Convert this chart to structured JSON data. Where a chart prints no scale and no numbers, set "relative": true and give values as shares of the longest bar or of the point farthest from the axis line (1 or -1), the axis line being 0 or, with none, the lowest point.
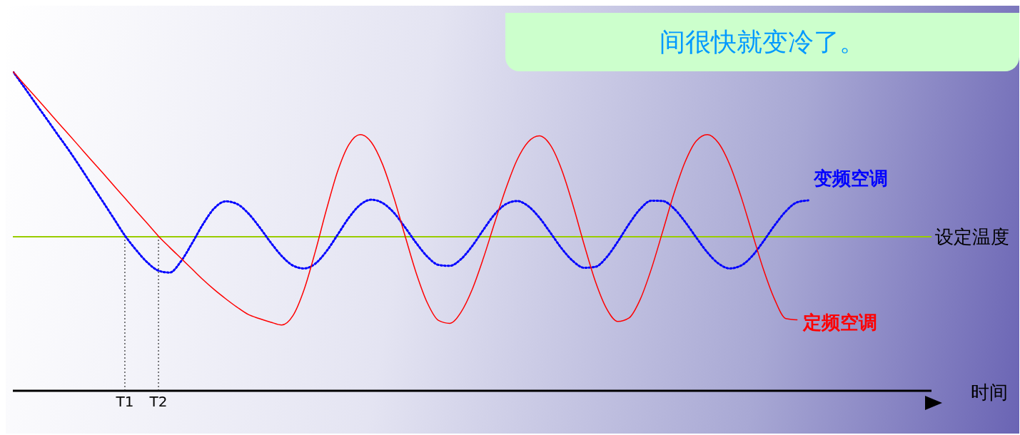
{
  "chart_data": {
    "type": "line",
    "relative": true,
    "xlabel": "时间",
    "categories": [
      null,
      null,
      null,
      null,
      null,
      null,
      null,
      null,
      null,
      null,
      "T1",
      null,
      null,
      "T2",
      null,
      null,
      null,
      null,
      null,
      null,
      null,
      null,
      null,
      null,
      null,
      null,
      null,
      null,
      null,
      null,
      null,
      null,
      null,
      null,
      null,
      null,
      null,
      null,
      null,
      null,
      null,
      null,
      null,
      null,
      null,
      null,
      null,
      null,
      null,
      null,
      null,
      null,
      null,
      null,
      null,
      null,
      null,
      null,
      null,
      null,
      null,
      null,
      null,
      null,
      null,
      null,
      null,
      null,
      null,
      null,
      null,
      null,
      null,
      null,
      null,
      null,
      null,
      null,
      null,
      null,
      null,
      null,
      null
    ],
    "series": [
      {
        "name": "变频空调",
        "color": "#0000ff",
        "line_style": "dotted",
        "values": [
          1.0,
          0.951,
          0.901,
          0.852,
          0.802,
          0.753,
          0.701,
          0.647,
          0.594,
          0.54,
          0.486,
          0.441,
          0.402,
          0.376,
          0.37,
          0.405,
          0.462,
          0.523,
          0.572,
          0.593,
          0.585,
          0.556,
          0.513,
          0.465,
          0.422,
          0.392,
          0.383,
          0.398,
          0.437,
          0.489,
          0.542,
          0.582,
          0.598,
          0.588,
          0.558,
          0.512,
          0.463,
          0.42,
          0.394,
          0.391,
          0.412,
          0.453,
          0.504,
          0.552,
          0.584,
          0.594,
          0.578,
          0.542,
          0.494,
          0.445,
          0.406,
          0.385,
          0.388,
          0.418,
          0.467,
          0.522,
          0.569,
          0.595,
          0.594,
          0.571,
          0.529,
          0.48,
          0.433,
          0.398,
          0.383,
          0.392,
          0.422,
          0.468,
          0.518,
          0.562,
          0.59,
          0.596,
          null,
          null,
          null,
          null,
          null,
          null,
          null,
          null,
          null,
          null,
          null
        ]
      },
      {
        "name": "定频空调",
        "color": "#ff0000",
        "line_style": "solid",
        "values": [
          1.0,
          0.96,
          0.921,
          0.881,
          0.841,
          0.802,
          0.762,
          0.722,
          0.683,
          0.643,
          0.603,
          0.563,
          0.524,
          0.484,
          0.449,
          0.415,
          0.381,
          0.347,
          0.316,
          0.288,
          0.262,
          0.239,
          0.226,
          0.215,
          0.206,
          0.235,
          0.317,
          0.436,
          0.568,
          0.688,
          0.771,
          0.802,
          0.778,
          0.709,
          0.606,
          0.486,
          0.369,
          0.275,
          0.22,
          0.211,
          0.246,
          0.317,
          0.415,
          0.525,
          0.632,
          0.722,
          0.779,
          0.798,
          0.768,
          0.691,
          0.581,
          0.457,
          0.342,
          0.257,
          0.217,
          0.228,
          0.286,
          0.382,
          0.498,
          0.616,
          0.716,
          0.782,
          0.802,
          0.775,
          0.707,
          0.608,
          0.493,
          0.38,
          0.286,
          0.226,
          0.222,
          null,
          null,
          null,
          null,
          null,
          null,
          null,
          null,
          null,
          null,
          null,
          null
        ]
      }
    ],
    "ref_lines": [
      {
        "axis": "y",
        "value": 0.482,
        "label": "设定温度",
        "color": "#99cc00",
        "line_style": "solid"
      },
      {
        "axis": "x",
        "value": "T1",
        "label": null,
        "color": "#000000",
        "line_style": "dotted"
      },
      {
        "axis": "x",
        "value": "T2",
        "label": null,
        "color": "#000000",
        "line_style": "dotted"
      }
    ],
    "annotations": [
      "间很快就变冷了。"
    ],
    "marker": "none",
    "legend": false,
    "grid": false
  }
}
